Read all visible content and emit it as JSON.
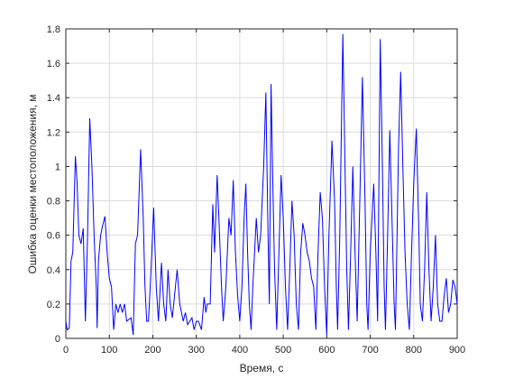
{
  "chart_data": {
    "type": "line",
    "x_label": "Время, с",
    "y_label": "Ошибка оценки местоположения, м",
    "xlim": [
      0,
      900
    ],
    "ylim": [
      0,
      1.8
    ],
    "xticks": [
      0,
      100,
      200,
      300,
      400,
      500,
      600,
      700,
      800,
      900
    ],
    "yticks": [
      0,
      0.2,
      0.4,
      0.6,
      0.8,
      1,
      1.2,
      1.4,
      1.6,
      1.8
    ],
    "grid": true,
    "series": [
      {
        "color": "#0000ff",
        "x": [
          0,
          3,
          8,
          12,
          16,
          22,
          26,
          30,
          35,
          40,
          45,
          50,
          55,
          60,
          65,
          70,
          72,
          75,
          80,
          85,
          90,
          95,
          100,
          105,
          110,
          115,
          120,
          125,
          130,
          135,
          140,
          150,
          155,
          160,
          165,
          172,
          178,
          182,
          186,
          190,
          196,
          202,
          208,
          213,
          220,
          225,
          230,
          235,
          240,
          245,
          250,
          256,
          262,
          270,
          275,
          280,
          290,
          295,
          300,
          305,
          312,
          318,
          322,
          325,
          332,
          338,
          342,
          348,
          352,
          358,
          362,
          368,
          375,
          380,
          385,
          390,
          395,
          400,
          405,
          410,
          414,
          418,
          422,
          426,
          430,
          438,
          443,
          448,
          455,
          460,
          465,
          468,
          472,
          476,
          480,
          485,
          490,
          495,
          500,
          505,
          510,
          515,
          520,
          525,
          530,
          535,
          540,
          545,
          550,
          555,
          560,
          565,
          570,
          575,
          580,
          585,
          590,
          595,
          600,
          605,
          612,
          618,
          622,
          625,
          630,
          637,
          642,
          646,
          650,
          655,
          660,
          665,
          670,
          676,
          682,
          688,
          692,
          695,
          700,
          708,
          713,
          717,
          723,
          728,
          732,
          735,
          740,
          745,
          750,
          755,
          758,
          765,
          770,
          775,
          780,
          785,
          790,
          795,
          800,
          806,
          812,
          815,
          820,
          825,
          830,
          835,
          840,
          845,
          850,
          855,
          860,
          865,
          870,
          875,
          880,
          885,
          890,
          895,
          900
        ],
        "values": [
          0.1,
          0.05,
          0.06,
          0.45,
          0.5,
          1.06,
          0.9,
          0.6,
          0.55,
          0.64,
          0.1,
          0.6,
          1.28,
          1.0,
          0.6,
          0.3,
          0.06,
          0.45,
          0.6,
          0.66,
          0.71,
          0.5,
          0.35,
          0.3,
          0.05,
          0.2,
          0.15,
          0.2,
          0.15,
          0.2,
          0.1,
          0.12,
          0.02,
          0.55,
          0.6,
          1.1,
          0.7,
          0.3,
          0.1,
          0.1,
          0.4,
          0.76,
          0.3,
          0.1,
          0.44,
          0.2,
          0.1,
          0.4,
          0.2,
          0.12,
          0.25,
          0.4,
          0.2,
          0.1,
          0.15,
          0.08,
          0.12,
          0.05,
          0.1,
          0.1,
          0.05,
          0.24,
          0.15,
          0.2,
          0.2,
          0.78,
          0.5,
          0.95,
          0.7,
          0.3,
          0.1,
          0.3,
          0.7,
          0.6,
          0.92,
          0.5,
          0.25,
          0.1,
          0.3,
          0.7,
          0.9,
          0.5,
          0.2,
          0.05,
          0.3,
          0.7,
          0.5,
          0.6,
          1.0,
          1.43,
          0.6,
          0.2,
          1.48,
          0.9,
          0.4,
          0.05,
          0.5,
          0.95,
          0.7,
          0.3,
          0.05,
          0.4,
          0.8,
          0.6,
          0.2,
          0.05,
          0.5,
          0.67,
          0.6,
          0.5,
          0.45,
          0.35,
          0.3,
          0.05,
          0.5,
          0.85,
          0.7,
          0.3,
          0.02,
          0.6,
          1.15,
          0.8,
          0.3,
          0.05,
          0.6,
          1.77,
          1.0,
          0.4,
          0.05,
          0.5,
          1.0,
          0.5,
          0.1,
          0.8,
          1.52,
          0.8,
          0.2,
          0.05,
          0.5,
          0.9,
          0.5,
          0.1,
          1.74,
          1.0,
          0.3,
          0.05,
          0.6,
          1.21,
          0.7,
          0.2,
          0.05,
          1.1,
          1.55,
          1.0,
          0.5,
          0.2,
          0.05,
          0.5,
          0.9,
          1.22,
          0.6,
          0.2,
          0.1,
          0.4,
          0.85,
          0.4,
          0.1,
          0.3,
          0.6,
          0.2,
          0.1,
          0.1,
          0.25,
          0.35,
          0.15,
          0.2,
          0.34,
          0.3,
          0.2
        ]
      }
    ]
  }
}
